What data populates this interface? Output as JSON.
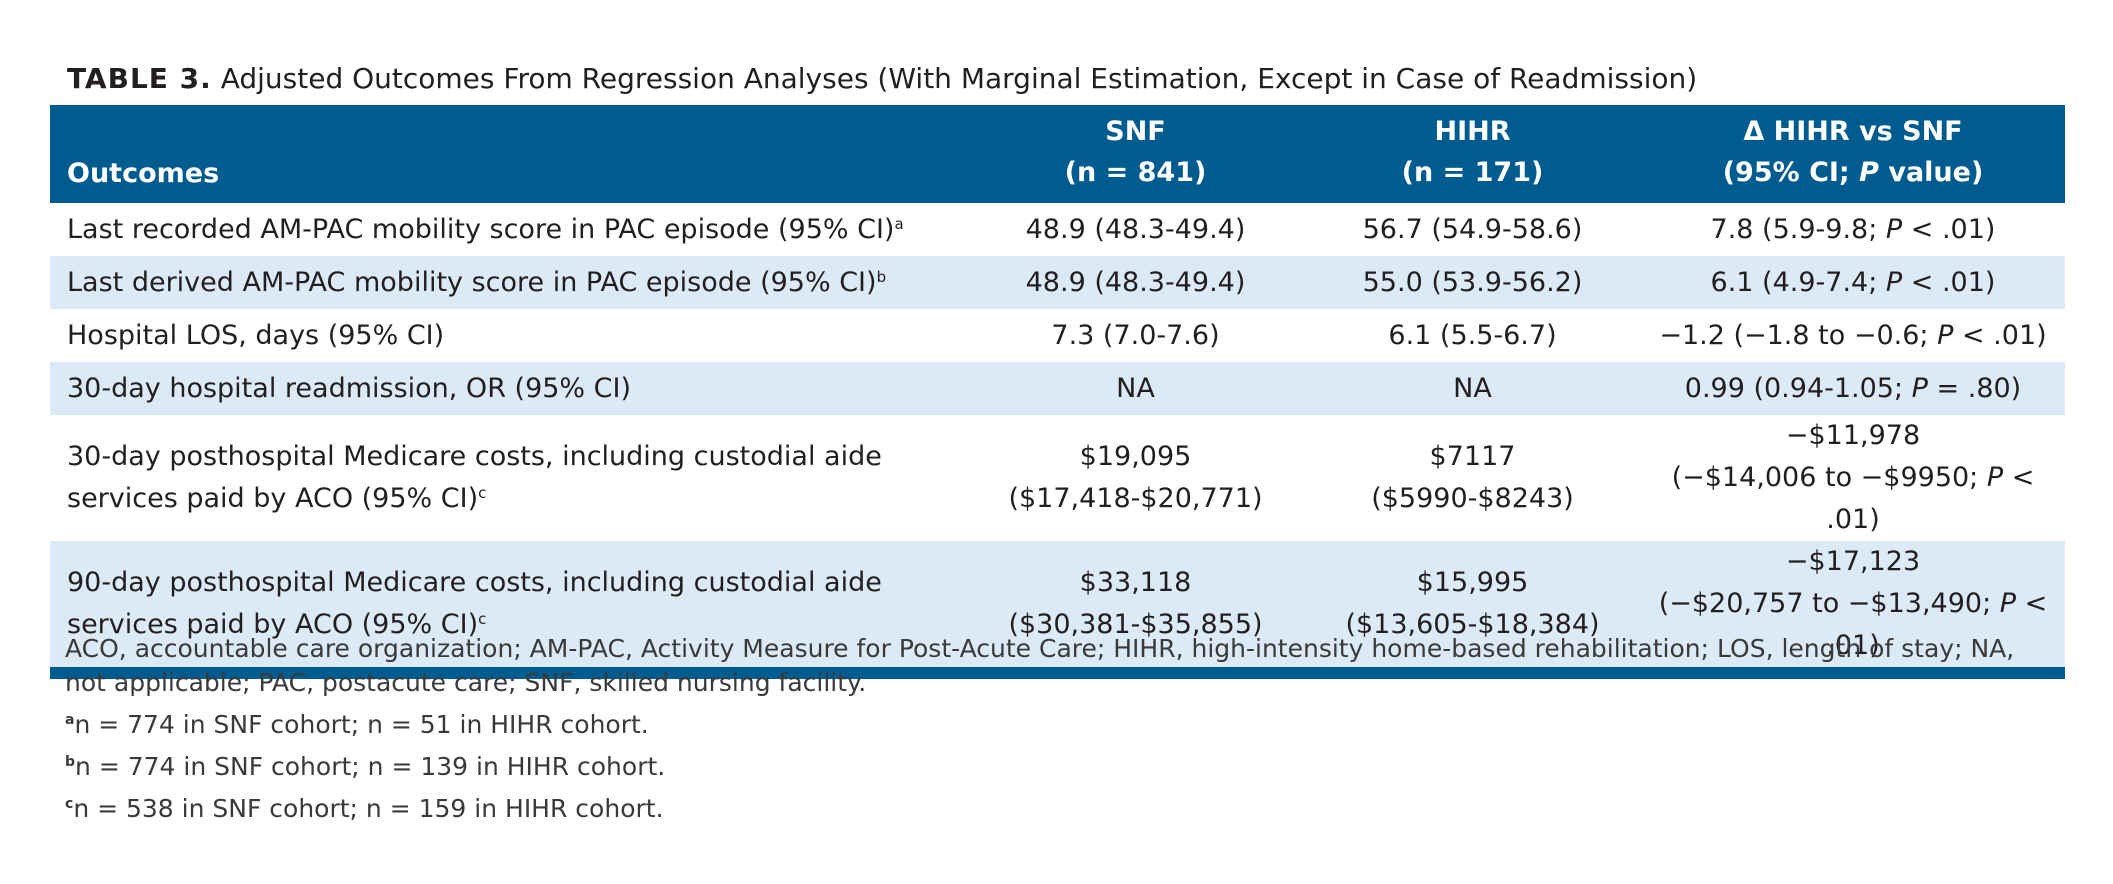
{
  "caption": {
    "label": "TABLE 3.",
    "title": "Adjusted Outcomes From Regression Analyses (With Marginal Estimation, Except in Case of Readmission)"
  },
  "header": {
    "outcomes": "Outcomes",
    "snf": {
      "name": "SNF",
      "n": "(n = 841)"
    },
    "hihr": {
      "name": "HIHR",
      "n": "(n = 171)"
    },
    "delta": {
      "name": "Δ HIHR vs SNF",
      "ci_pre": "(95% CI; ",
      "p": "P",
      "ci_post": " value)"
    }
  },
  "rows": [
    {
      "label": "Last recorded AM-PAC mobility score in PAC episode (95% CI)",
      "fn": "a",
      "snf": "48.9 (48.3-49.4)",
      "hihr": "56.7 (54.9-58.6)",
      "delta_pre": "7.8 (5.9-9.8; ",
      "delta_post": " < .01)"
    },
    {
      "label": "Last derived AM-PAC mobility score in PAC episode (95% CI)",
      "fn": "b",
      "snf": "48.9 (48.3-49.4)",
      "hihr": "55.0 (53.9-56.2)",
      "delta_pre": "6.1 (4.9-7.4; ",
      "delta_post": " < .01)"
    },
    {
      "label": "Hospital LOS, days (95% CI)",
      "snf": "7.3 (7.0-7.6)",
      "hihr": "6.1 (5.5-6.7)",
      "delta_pre": "−1.2 (−1.8 to −0.6; ",
      "delta_post": " < .01)"
    },
    {
      "label": "30-day hospital readmission, OR (95% CI)",
      "snf": "NA",
      "hihr": "NA",
      "delta_pre": "0.99 (0.94-1.05; ",
      "delta_post": " = .80)"
    },
    {
      "label1": "30-day posthospital Medicare costs, including custodial aide",
      "label2": "services paid by ACO (95% CI)",
      "fn": "c",
      "snf1": "$19,095",
      "snf2": "($17,418-$20,771)",
      "hihr1": "$7117",
      "hihr2": "($5990-$8243)",
      "delta1": "−$11,978",
      "delta2_pre": "(−$14,006 to −$9950; ",
      "delta2_post": " < .01)"
    },
    {
      "label1": "90-day posthospital Medicare costs, including custodial aide",
      "label2": "services paid by ACO (95% CI)",
      "fn": "c",
      "snf1": "$33,118",
      "snf2": "($30,381-$35,855)",
      "hihr1": "$15,995",
      "hihr2": "($13,605-$18,384)",
      "delta1": "−$17,123",
      "delta2_pre": "(−$20,757 to −$13,490; ",
      "delta2_post": " < .01)"
    }
  ],
  "p_symbol": "P",
  "notes": {
    "abbreviations": "ACO, accountable care organization; AM-PAC, Activity Measure for Post-Acute Care; HIHR, high-intensity home-based rehabilitation; LOS, length of stay; NA, not applicable; PAC, postacute care; SNF, skilled nursing facility.",
    "footnotes": [
      {
        "mark": "a",
        "text": "n = 774 in SNF cohort; n = 51 in HIHR cohort."
      },
      {
        "mark": "b",
        "text": "n = 774 in SNF cohort; n = 139 in HIHR cohort."
      },
      {
        "mark": "c",
        "text": "n = 538 in SNF cohort; n = 159 in HIHR cohort."
      }
    ]
  }
}
